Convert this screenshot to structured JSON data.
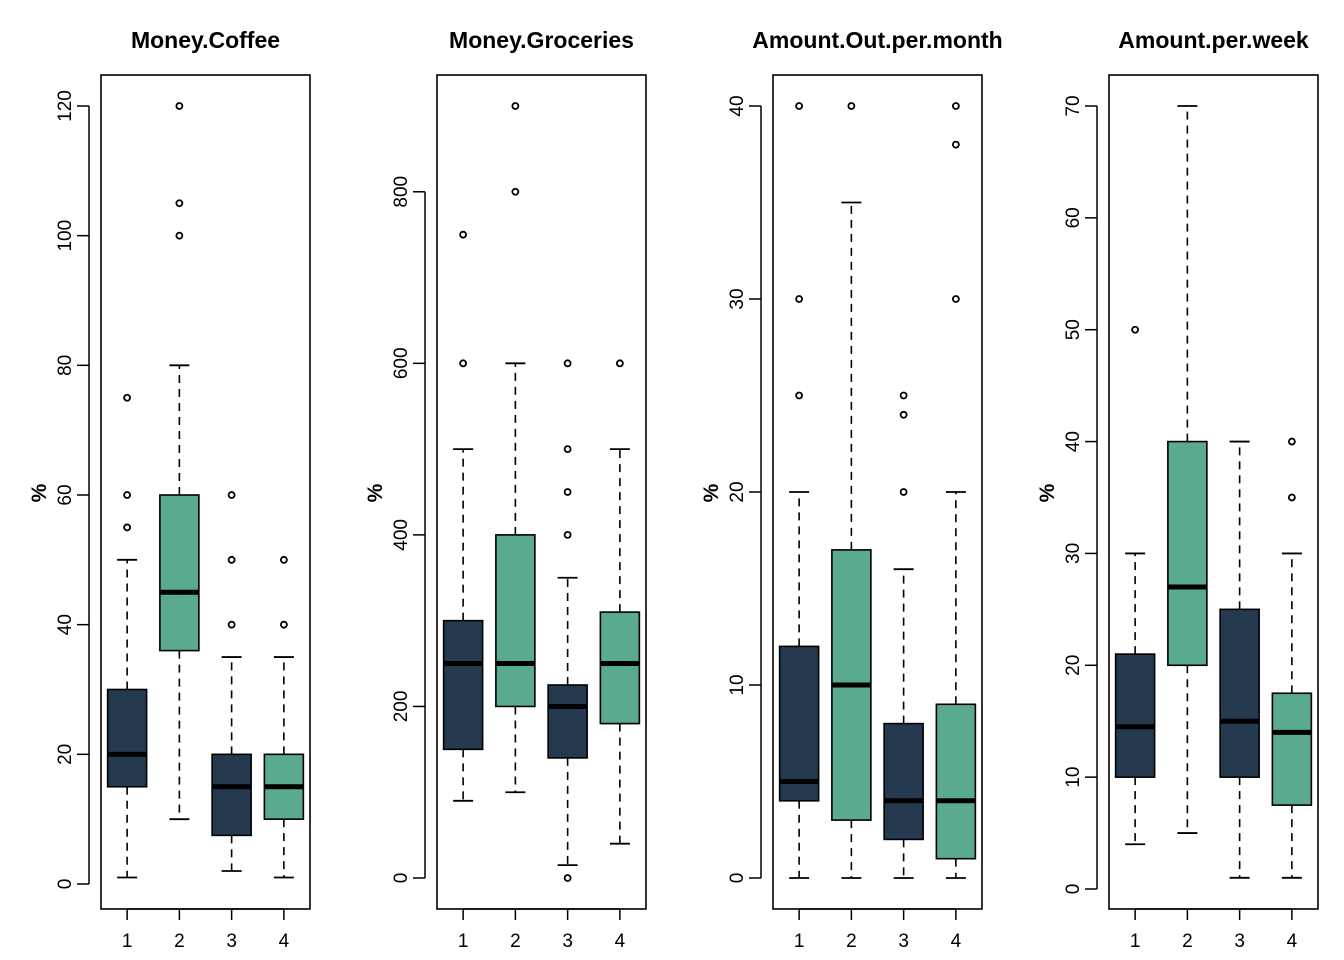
{
  "colors": {
    "dark": "#263a4f",
    "green": "#5aaa8e",
    "stroke": "#000000",
    "background": "#ffffff"
  },
  "chart_data": [
    {
      "type": "box",
      "title": "Money.Coffee",
      "ylabel": "%",
      "ylim": [
        0,
        120
      ],
      "yticks": [
        0,
        20,
        40,
        60,
        80,
        100,
        120
      ],
      "categories": [
        "1",
        "2",
        "3",
        "4"
      ],
      "box_colors": [
        "dark",
        "green",
        "dark",
        "green"
      ],
      "boxes": [
        {
          "category": "1",
          "whisker_low": 1,
          "q1": 15,
          "median": 20,
          "q3": 30,
          "whisker_high": 50,
          "outliers": [
            55,
            60,
            75
          ]
        },
        {
          "category": "2",
          "whisker_low": 10,
          "q1": 36,
          "median": 45,
          "q3": 60,
          "whisker_high": 80,
          "outliers": [
            100,
            105,
            120
          ]
        },
        {
          "category": "3",
          "whisker_low": 2,
          "q1": 7.5,
          "median": 15,
          "q3": 20,
          "whisker_high": 35,
          "outliers": [
            40,
            50,
            60
          ]
        },
        {
          "category": "4",
          "whisker_low": 1,
          "q1": 10,
          "median": 15,
          "q3": 20,
          "whisker_high": 35,
          "outliers": [
            40,
            50
          ]
        }
      ]
    },
    {
      "type": "box",
      "title": "Money.Groceries",
      "ylabel": "%",
      "ylim": [
        0,
        900
      ],
      "yticks": [
        0,
        200,
        400,
        600,
        800
      ],
      "categories": [
        "1",
        "2",
        "3",
        "4"
      ],
      "box_colors": [
        "dark",
        "green",
        "dark",
        "green"
      ],
      "boxes": [
        {
          "category": "1",
          "whisker_low": 90,
          "q1": 150,
          "median": 250,
          "q3": 300,
          "whisker_high": 500,
          "outliers": [
            600,
            750
          ]
        },
        {
          "category": "2",
          "whisker_low": 100,
          "q1": 200,
          "median": 250,
          "q3": 400,
          "whisker_high": 600,
          "outliers": [
            800,
            900
          ]
        },
        {
          "category": "3",
          "whisker_low": 15,
          "q1": 140,
          "median": 200,
          "q3": 225,
          "whisker_high": 350,
          "outliers": [
            0,
            400,
            450,
            500,
            600
          ]
        },
        {
          "category": "4",
          "whisker_low": 40,
          "q1": 180,
          "median": 250,
          "q3": 310,
          "whisker_high": 500,
          "outliers": [
            600
          ]
        }
      ]
    },
    {
      "type": "box",
      "title": "Amount.Out.per.month",
      "ylabel": "%",
      "ylim": [
        0,
        40
      ],
      "yticks": [
        0,
        10,
        20,
        30,
        40
      ],
      "categories": [
        "1",
        "2",
        "3",
        "4"
      ],
      "box_colors": [
        "dark",
        "green",
        "dark",
        "green"
      ],
      "boxes": [
        {
          "category": "1",
          "whisker_low": 0,
          "q1": 4,
          "median": 5,
          "q3": 12,
          "whisker_high": 20,
          "outliers": [
            25,
            30,
            40
          ]
        },
        {
          "category": "2",
          "whisker_low": 0,
          "q1": 3,
          "median": 10,
          "q3": 17,
          "whisker_high": 35,
          "outliers": [
            40
          ]
        },
        {
          "category": "3",
          "whisker_low": 0,
          "q1": 2,
          "median": 4,
          "q3": 8,
          "whisker_high": 16,
          "outliers": [
            20,
            24,
            25
          ]
        },
        {
          "category": "4",
          "whisker_low": 0,
          "q1": 1,
          "median": 4,
          "q3": 9,
          "whisker_high": 20,
          "outliers": [
            30,
            38,
            40
          ]
        }
      ]
    },
    {
      "type": "box",
      "title": "Amount.per.week",
      "ylabel": "%",
      "ylim": [
        0,
        70
      ],
      "yticks": [
        0,
        10,
        20,
        30,
        40,
        50,
        60,
        70
      ],
      "categories": [
        "1",
        "2",
        "3",
        "4"
      ],
      "box_colors": [
        "dark",
        "green",
        "dark",
        "green"
      ],
      "boxes": [
        {
          "category": "1",
          "whisker_low": 4,
          "q1": 10,
          "median": 14.5,
          "q3": 21,
          "whisker_high": 30,
          "outliers": [
            50
          ]
        },
        {
          "category": "2",
          "whisker_low": 5,
          "q1": 20,
          "median": 27,
          "q3": 40,
          "whisker_high": 70,
          "outliers": []
        },
        {
          "category": "3",
          "whisker_low": 1,
          "q1": 10,
          "median": 15,
          "q3": 25,
          "whisker_high": 40,
          "outliers": []
        },
        {
          "category": "4",
          "whisker_low": 1,
          "q1": 7.5,
          "median": 14,
          "q3": 17.5,
          "whisker_high": 30,
          "outliers": [
            35,
            40
          ]
        }
      ]
    }
  ]
}
